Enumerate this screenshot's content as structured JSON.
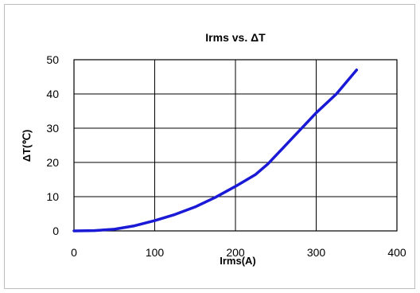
{
  "chart_data": {
    "type": "line",
    "title": "Irms vs. ΔT",
    "xlabel": "Irms(A)",
    "ylabel": "ΔT(℃)",
    "xlim": [
      0,
      400
    ],
    "ylim": [
      0,
      50
    ],
    "xticks": [
      "0",
      "100",
      "200",
      "300",
      "400"
    ],
    "yticks": [
      "0",
      "10",
      "20",
      "30",
      "40",
      "50"
    ],
    "grid": true,
    "legend": "none",
    "line_color": "#1a1ad6",
    "series": [
      {
        "x": [
          0,
          25,
          50,
          75,
          100,
          125,
          150,
          175,
          200,
          225,
          240,
          260,
          280,
          300,
          325,
          350
        ],
        "y": [
          0,
          0.1,
          0.5,
          1.5,
          3,
          4.8,
          7,
          9.8,
          13,
          16.5,
          19.5,
          24.5,
          29.5,
          34.5,
          40,
          47
        ]
      }
    ]
  }
}
